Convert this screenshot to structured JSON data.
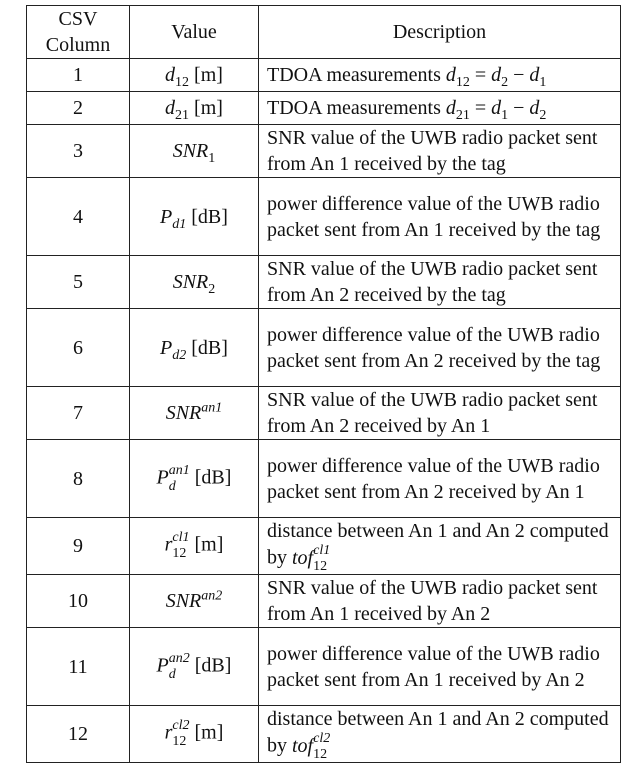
{
  "headers": [
    "CSV Column",
    "Value",
    "Description"
  ],
  "rows": [
    {
      "col": "1",
      "value_sym": "d",
      "value_sub": "12",
      "value_unit": "[m]",
      "desc": "TDOA measurements",
      "desc_math": "d12 = d2 − d1"
    },
    {
      "col": "2",
      "value_sym": "d",
      "value_sub": "21",
      "value_unit": "[m]",
      "desc": "TDOA measurements",
      "desc_math": "d21 = d1 − d2"
    },
    {
      "col": "3",
      "value_sym": "SNR",
      "value_sub": "1",
      "value_unit": "",
      "desc": "SNR value of the UWB radio packet sent from An 1 received by the tag"
    },
    {
      "col": "4",
      "value_sym": "P",
      "value_sub": "d1",
      "value_unit": "[dB]",
      "desc": "power difference value of the UWB radio packet sent from An 1 received by the tag"
    },
    {
      "col": "5",
      "value_sym": "SNR",
      "value_sub": "2",
      "value_unit": "",
      "desc": "SNR value of the UWB radio packet sent from An 2 received by the tag"
    },
    {
      "col": "6",
      "value_sym": "P",
      "value_sub": "d2",
      "value_unit": "[dB]",
      "desc": "power difference value of the UWB radio packet sent from An 2 received by the tag"
    },
    {
      "col": "7",
      "value_sym": "SNR",
      "value_sup": "an1",
      "value_unit": "",
      "desc": "SNR value of the UWB radio packet sent from An 2 received by An 1"
    },
    {
      "col": "8",
      "value_sym": "P",
      "value_sup": "an1",
      "value_sub": "d",
      "value_unit": "[dB]",
      "desc": "power difference value of the UWB radio packet sent from An 2 received by An 1"
    },
    {
      "col": "9",
      "value_sym": "r",
      "value_sup": "cl1",
      "value_sub": "12",
      "value_unit": "[m]",
      "desc": "distance between An 1 and An 2 computed by",
      "desc_math": "tof12 cl1"
    },
    {
      "col": "10",
      "value_sym": "SNR",
      "value_sup": "an2",
      "value_unit": "",
      "desc": "SNR value of the UWB radio packet sent from An 1 received by An 2"
    },
    {
      "col": "11",
      "value_sym": "P",
      "value_sup": "an2",
      "value_sub": "d",
      "value_unit": "[dB]",
      "desc": "power difference value of the UWB radio packet sent from An 1 received by An 2"
    },
    {
      "col": "12",
      "value_sym": "r",
      "value_sup": "cl2",
      "value_sub": "12",
      "value_unit": "[m]",
      "desc": "distance between An 1 and An 2 computed by",
      "desc_math": "tof12 cl2"
    }
  ]
}
